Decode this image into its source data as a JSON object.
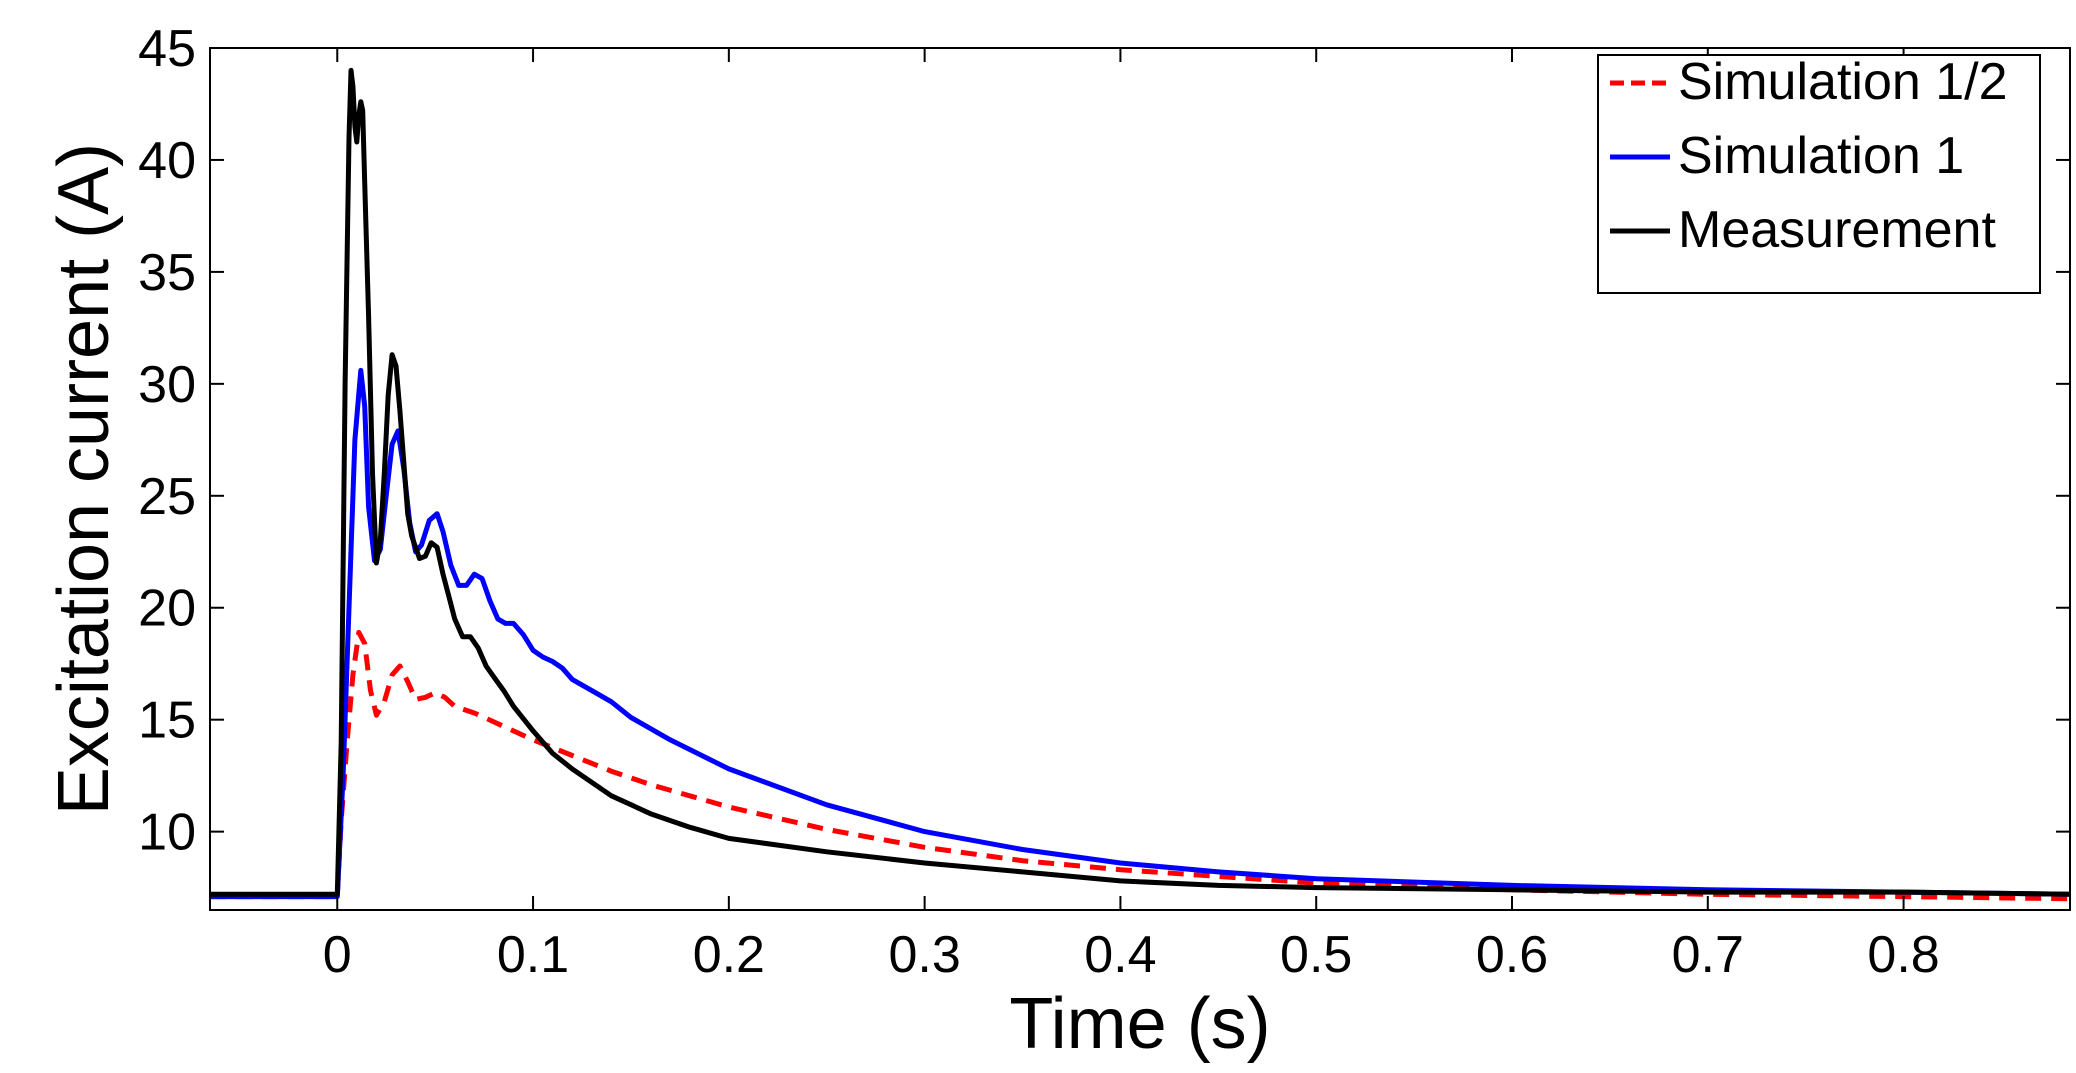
{
  "chart_data": {
    "type": "line",
    "title": "",
    "xlabel": "Time (s)",
    "ylabel": "Excitation current (A)",
    "xlim": [
      -0.065,
      0.885
    ],
    "ylim": [
      6.5,
      45
    ],
    "xticks": [
      0,
      0.1,
      0.2,
      0.3,
      0.4,
      0.5,
      0.6,
      0.7,
      0.8
    ],
    "xtick_labels": [
      "0",
      "0.1",
      "0.2",
      "0.3",
      "0.4",
      "0.5",
      "0.6",
      "0.7",
      "0.8"
    ],
    "yticks": [
      10,
      15,
      20,
      25,
      30,
      35,
      40,
      45
    ],
    "ytick_labels": [
      "10",
      "15",
      "20",
      "25",
      "30",
      "35",
      "40",
      "45"
    ],
    "grid": false,
    "legend_position": "top-right",
    "series": [
      {
        "name": "Simulation 1/2",
        "color": "#ff0000",
        "dash": "dashed",
        "x": [
          -0.065,
          0,
          0.002,
          0.005,
          0.008,
          0.011,
          0.014,
          0.017,
          0.02,
          0.024,
          0.028,
          0.032,
          0.036,
          0.04,
          0.045,
          0.05,
          0.055,
          0.06,
          0.07,
          0.08,
          0.09,
          0.1,
          0.12,
          0.14,
          0.16,
          0.18,
          0.2,
          0.25,
          0.3,
          0.35,
          0.4,
          0.45,
          0.5,
          0.6,
          0.7,
          0.8,
          0.885
        ],
        "y": [
          7.1,
          7.1,
          10.5,
          14.0,
          17.0,
          18.9,
          18.4,
          16.3,
          15.2,
          15.8,
          17.0,
          17.4,
          16.7,
          15.9,
          16.0,
          16.2,
          16.0,
          15.6,
          15.3,
          14.9,
          14.5,
          14.1,
          13.4,
          12.7,
          12.1,
          11.6,
          11.1,
          10.1,
          9.3,
          8.7,
          8.3,
          8.0,
          7.7,
          7.4,
          7.2,
          7.1,
          7.0
        ]
      },
      {
        "name": "Simulation 1",
        "color": "#0000ff",
        "dash": "solid",
        "x": [
          -0.065,
          0,
          0.003,
          0.006,
          0.009,
          0.012,
          0.014,
          0.016,
          0.019,
          0.022,
          0.025,
          0.028,
          0.031,
          0.034,
          0.037,
          0.04,
          0.043,
          0.047,
          0.051,
          0.054,
          0.058,
          0.062,
          0.066,
          0.07,
          0.074,
          0.078,
          0.082,
          0.086,
          0.09,
          0.095,
          0.1,
          0.105,
          0.11,
          0.115,
          0.12,
          0.13,
          0.14,
          0.15,
          0.17,
          0.2,
          0.25,
          0.3,
          0.35,
          0.4,
          0.45,
          0.5,
          0.6,
          0.7,
          0.8,
          0.885
        ],
        "y": [
          7.1,
          7.1,
          12.5,
          20.0,
          27.5,
          30.6,
          29.0,
          24.5,
          22.1,
          22.6,
          25.0,
          27.3,
          27.9,
          26.2,
          23.8,
          22.5,
          22.8,
          23.9,
          24.2,
          23.4,
          21.9,
          21.0,
          21.0,
          21.5,
          21.3,
          20.3,
          19.5,
          19.3,
          19.3,
          18.8,
          18.1,
          17.8,
          17.6,
          17.3,
          16.8,
          16.3,
          15.8,
          15.1,
          14.1,
          12.8,
          11.2,
          10.0,
          9.2,
          8.6,
          8.2,
          7.9,
          7.6,
          7.4,
          7.3,
          7.2
        ]
      },
      {
        "name": "Measurement",
        "color": "#000000",
        "dash": "solid",
        "x": [
          -0.065,
          0,
          0.002,
          0.004,
          0.006,
          0.007,
          0.008,
          0.009,
          0.01,
          0.011,
          0.012,
          0.013,
          0.014,
          0.016,
          0.018,
          0.02,
          0.022,
          0.024,
          0.026,
          0.028,
          0.03,
          0.032,
          0.034,
          0.036,
          0.038,
          0.04,
          0.042,
          0.045,
          0.048,
          0.051,
          0.054,
          0.057,
          0.06,
          0.064,
          0.068,
          0.072,
          0.076,
          0.08,
          0.085,
          0.09,
          0.1,
          0.11,
          0.12,
          0.14,
          0.16,
          0.18,
          0.2,
          0.25,
          0.3,
          0.35,
          0.4,
          0.45,
          0.5,
          0.6,
          0.7,
          0.8,
          0.885
        ],
        "y": [
          7.2,
          7.2,
          14.0,
          30.0,
          41.0,
          44.0,
          43.3,
          41.5,
          40.8,
          42.0,
          42.6,
          42.2,
          39.0,
          33.0,
          26.0,
          22.0,
          23.0,
          26.0,
          29.5,
          31.3,
          30.8,
          28.8,
          26.5,
          24.2,
          23.2,
          22.7,
          22.2,
          22.3,
          22.9,
          22.7,
          21.5,
          20.5,
          19.5,
          18.7,
          18.7,
          18.2,
          17.4,
          16.9,
          16.3,
          15.6,
          14.5,
          13.5,
          12.8,
          11.6,
          10.8,
          10.2,
          9.7,
          9.1,
          8.6,
          8.2,
          7.8,
          7.6,
          7.5,
          7.4,
          7.3,
          7.3,
          7.2
        ]
      }
    ]
  }
}
